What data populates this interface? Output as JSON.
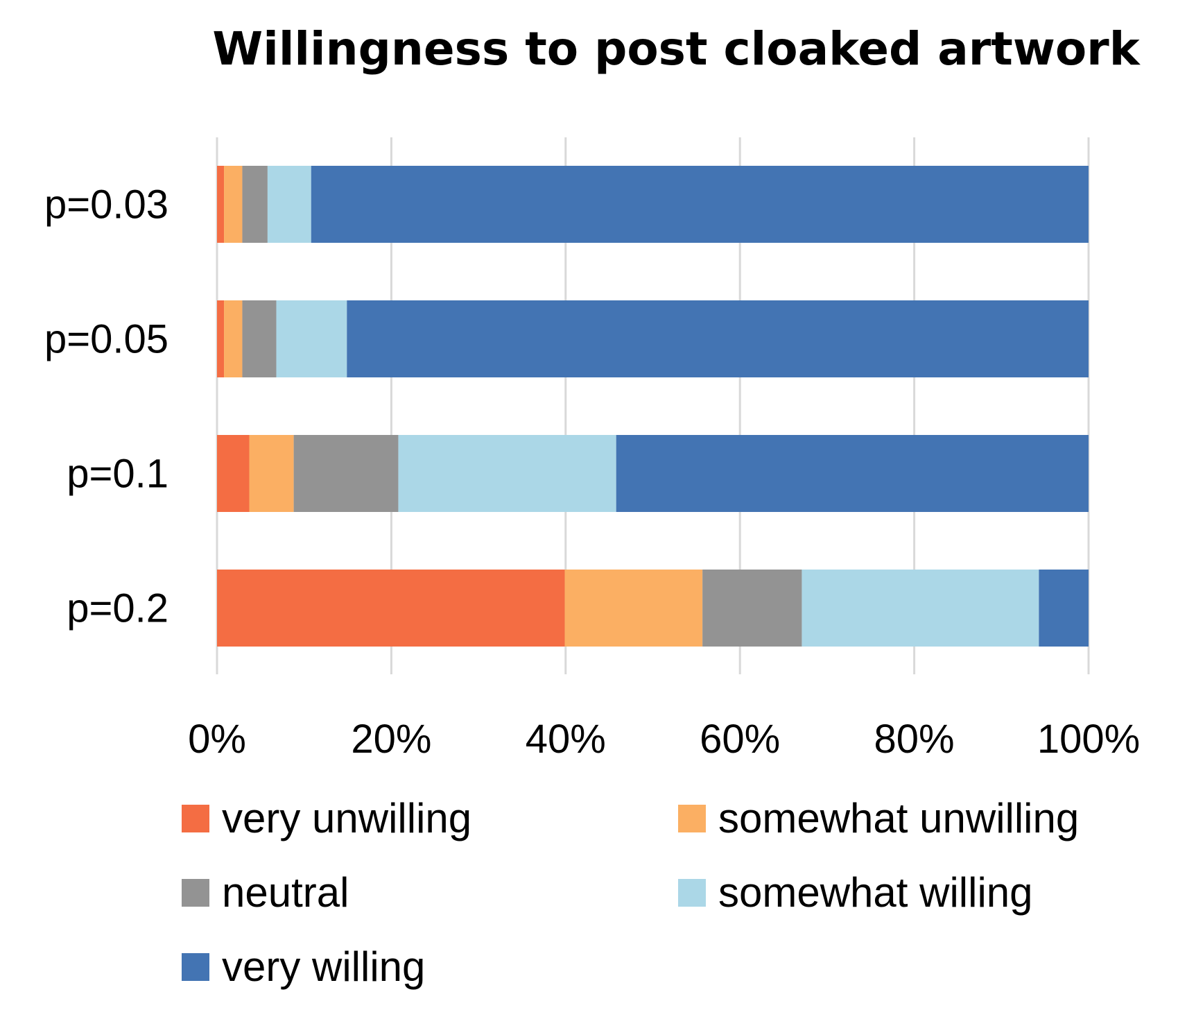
{
  "chart_data": {
    "type": "bar",
    "orientation": "horizontal",
    "stacked": "percent",
    "title": "Willingness to post cloaked artwork",
    "categories": [
      "p=0.03",
      "p=0.05",
      "p=0.1",
      "p=0.2"
    ],
    "series": [
      {
        "name": "very unwilling",
        "color": "#F46D43",
        "values": [
          0.8,
          0.8,
          3.7,
          39.9
        ]
      },
      {
        "name": "somewhat unwilling",
        "color": "#FBAF63",
        "values": [
          2.1,
          2.1,
          5.1,
          15.8
        ]
      },
      {
        "name": "neutral",
        "color": "#939393",
        "values": [
          2.9,
          3.9,
          12.0,
          11.4
        ]
      },
      {
        "name": "somewhat willing",
        "color": "#ABD7E7",
        "values": [
          5.0,
          8.1,
          25.0,
          27.2
        ]
      },
      {
        "name": "very willing",
        "color": "#4374B3",
        "values": [
          89.2,
          85.1,
          54.2,
          5.7
        ]
      }
    ],
    "xlim": [
      0,
      100
    ],
    "x_ticks": [
      "0%",
      "20%",
      "40%",
      "60%",
      "80%",
      "100%"
    ],
    "grid": true,
    "legend_position": "bottom",
    "xlabel": "",
    "ylabel": ""
  }
}
